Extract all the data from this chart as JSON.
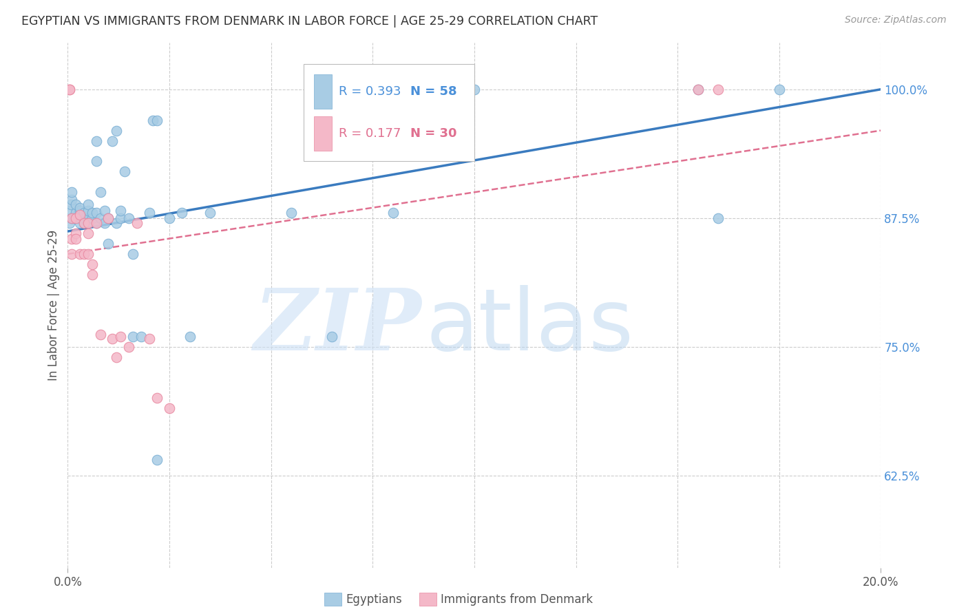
{
  "title": "EGYPTIAN VS IMMIGRANTS FROM DENMARK IN LABOR FORCE | AGE 25-29 CORRELATION CHART",
  "source": "Source: ZipAtlas.com",
  "ylabel": "In Labor Force | Age 25-29",
  "ytick_labels": [
    "62.5%",
    "75.0%",
    "87.5%",
    "100.0%"
  ],
  "ytick_values": [
    0.625,
    0.75,
    0.875,
    1.0
  ],
  "xlim": [
    0.0,
    0.2
  ],
  "ylim": [
    0.535,
    1.045
  ],
  "legend_r1": "R = 0.393",
  "legend_n1": "N = 58",
  "legend_r2": "R = 0.177",
  "legend_n2": "N = 30",
  "blue_color": "#a8cce4",
  "blue_edge_color": "#7bafd4",
  "blue_line_color": "#3a7bbf",
  "pink_color": "#f4b8c8",
  "pink_edge_color": "#e888a0",
  "pink_line_color": "#e07090",
  "legend_bg": "#ffffff",
  "legend_border": "#cccccc",
  "right_label_color": "#4a90d9",
  "title_color": "#333333",
  "source_color": "#999999",
  "background_color": "#ffffff",
  "grid_color": "#cccccc",
  "blue_trend_x": [
    0.0,
    0.2
  ],
  "blue_trend_y": [
    0.862,
    1.0
  ],
  "pink_trend_x": [
    0.0,
    0.2
  ],
  "pink_trend_y": [
    0.84,
    0.96
  ],
  "blue_scatter_x": [
    0.0005,
    0.0005,
    0.0008,
    0.001,
    0.001,
    0.001,
    0.0015,
    0.002,
    0.002,
    0.002,
    0.003,
    0.003,
    0.003,
    0.003,
    0.004,
    0.004,
    0.004,
    0.005,
    0.005,
    0.005,
    0.005,
    0.006,
    0.006,
    0.007,
    0.007,
    0.007,
    0.007,
    0.008,
    0.008,
    0.009,
    0.009,
    0.01,
    0.01,
    0.011,
    0.012,
    0.012,
    0.013,
    0.013,
    0.014,
    0.015,
    0.016,
    0.016,
    0.018,
    0.02,
    0.021,
    0.022,
    0.022,
    0.025,
    0.028,
    0.03,
    0.035,
    0.055,
    0.065,
    0.08,
    0.1,
    0.155,
    0.16,
    0.175
  ],
  "blue_scatter_y": [
    0.882,
    0.87,
    0.888,
    0.893,
    0.9,
    0.875,
    0.875,
    0.88,
    0.875,
    0.888,
    0.875,
    0.882,
    0.885,
    0.87,
    0.875,
    0.88,
    0.87,
    0.875,
    0.882,
    0.888,
    0.87,
    0.875,
    0.88,
    0.93,
    0.95,
    0.88,
    0.87,
    0.875,
    0.9,
    0.87,
    0.882,
    0.875,
    0.85,
    0.95,
    0.96,
    0.87,
    0.875,
    0.882,
    0.92,
    0.875,
    0.76,
    0.84,
    0.76,
    0.88,
    0.97,
    0.97,
    0.64,
    0.875,
    0.88,
    0.76,
    0.88,
    0.88,
    0.76,
    0.88,
    1.0,
    1.0,
    0.875,
    1.0
  ],
  "pink_scatter_x": [
    0.0005,
    0.0005,
    0.001,
    0.001,
    0.001,
    0.002,
    0.002,
    0.002,
    0.003,
    0.003,
    0.004,
    0.004,
    0.005,
    0.005,
    0.005,
    0.006,
    0.006,
    0.007,
    0.008,
    0.01,
    0.011,
    0.012,
    0.013,
    0.015,
    0.017,
    0.02,
    0.022,
    0.025,
    0.155,
    0.16
  ],
  "pink_scatter_y": [
    1.0,
    1.0,
    0.875,
    0.855,
    0.84,
    0.875,
    0.86,
    0.855,
    0.878,
    0.84,
    0.87,
    0.84,
    0.84,
    0.86,
    0.87,
    0.83,
    0.82,
    0.87,
    0.762,
    0.875,
    0.758,
    0.74,
    0.76,
    0.75,
    0.87,
    0.758,
    0.7,
    0.69,
    1.0,
    1.0
  ],
  "watermark_zip_color": "#cce0f5",
  "watermark_atlas_color": "#b8d4ef"
}
